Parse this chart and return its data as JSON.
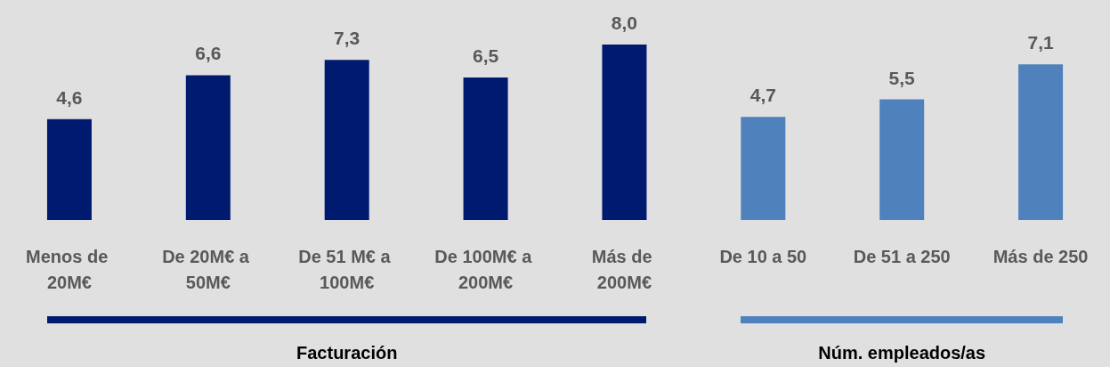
{
  "chart_data": {
    "type": "bar",
    "categories": [
      "Menos de 20M€",
      "De 20M€ a 50M€",
      "De 51 M€ a 100M€",
      "De 100M€ a 200M€",
      "Más de 200M€",
      "De 10 a 50",
      "De 51 a 250",
      "Más de 250"
    ],
    "values": [
      4.6,
      6.6,
      7.3,
      6.5,
      8.0,
      4.7,
      5.5,
      7.1
    ],
    "colors": [
      "#001a70",
      "#001a70",
      "#001a70",
      "#001a70",
      "#001a70",
      "#4f81bd",
      "#4f81bd",
      "#4f81bd"
    ],
    "value_labels": [
      "4,6",
      "6,6",
      "7,3",
      "6,5",
      "8,0",
      "4,7",
      "5,5",
      "7,1"
    ],
    "annotations": [
      "Facturación",
      "Núm. empleados/as"
    ]
  }
}
